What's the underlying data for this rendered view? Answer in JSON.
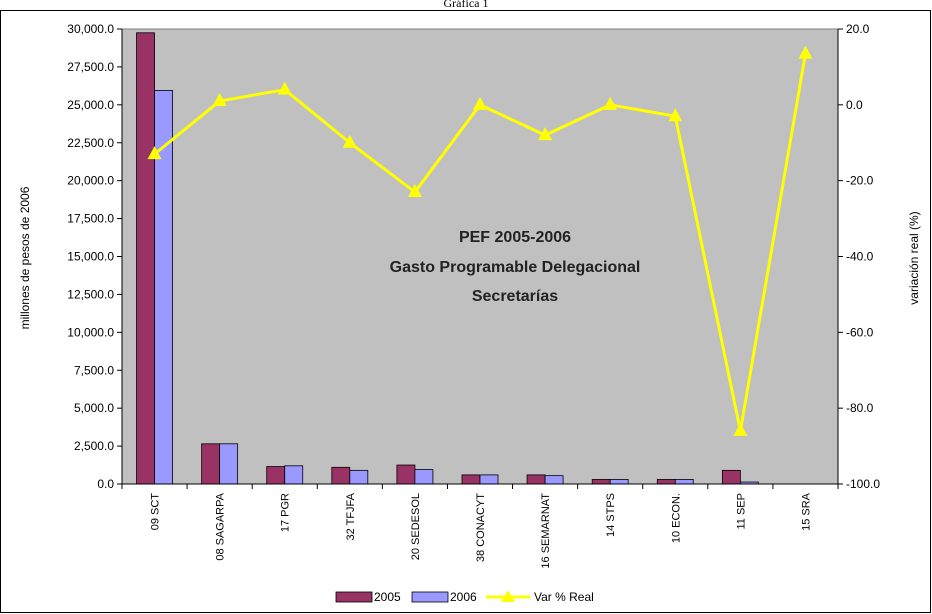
{
  "figure_label": "Gráfica 1",
  "chart_data": {
    "type": "bar",
    "title_lines": [
      "PEF 2005-2006",
      "Gasto Programable Delegacional",
      "Secretarías"
    ],
    "categories": [
      "09  SCT",
      "08 SAGARPA",
      "17 PGR",
      "32  TFJFA",
      "20  SEDESOL",
      "38 CONACYT",
      "16  SEMARNAT",
      "14 STPS",
      "10  ECON.",
      "11 SEP",
      "15 SRA"
    ],
    "series": [
      {
        "name": "2005",
        "type": "bar",
        "axis": "left",
        "color": "#993366",
        "values": [
          29750,
          2650,
          1150,
          1100,
          1250,
          600,
          600,
          300,
          300,
          900,
          0
        ]
      },
      {
        "name": "2006",
        "type": "bar",
        "axis": "left",
        "color": "#9999ff",
        "values": [
          25950,
          2650,
          1200,
          900,
          950,
          600,
          550,
          300,
          300,
          130,
          0
        ]
      },
      {
        "name": "Var % Real",
        "type": "line",
        "axis": "right",
        "color": "#ffff00",
        "values": [
          -13,
          1,
          4,
          -10,
          -23,
          0,
          -8,
          0,
          -3,
          -86,
          13.5
        ]
      }
    ],
    "ylabel": "millones de pesos de 2006",
    "ylabel_right": "variación real (%)",
    "ylim": [
      0,
      30000
    ],
    "ylim_right": [
      -100,
      20
    ],
    "yticks": [
      "0.0",
      "2,500.0",
      "5,000.0",
      "7,500.0",
      "10,000.0",
      "12,500.0",
      "15,000.0",
      "17,500.0",
      "20,000.0",
      "22,500.0",
      "25,000.0",
      "27,500.0",
      "30,000.0"
    ],
    "yticks_right": [
      "-100.0",
      "-80.0",
      "-60.0",
      "-40.0",
      "-20.0",
      "0.0",
      "20.0"
    ],
    "plot_background": "#c0c0c0",
    "legend_position": "bottom"
  }
}
